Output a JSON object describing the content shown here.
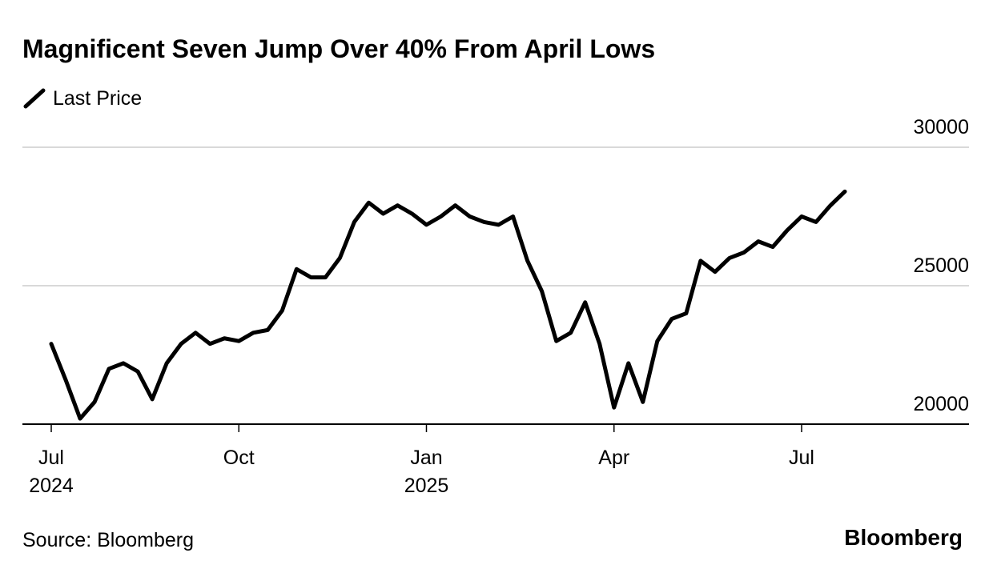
{
  "chart_data": {
    "type": "line",
    "title": "Magnificent Seven Jump Over 40% From April Lows",
    "source": "Source: Bloomberg",
    "brand": "Bloomberg",
    "categories": [
      "Jul\n2024",
      null,
      null,
      null,
      null,
      null,
      null,
      null,
      null,
      null,
      null,
      null,
      null,
      "Oct",
      null,
      null,
      null,
      null,
      null,
      null,
      null,
      null,
      null,
      null,
      null,
      null,
      "Jan\n2025",
      null,
      null,
      null,
      null,
      null,
      null,
      null,
      null,
      null,
      null,
      null,
      null,
      "Apr",
      null,
      null,
      null,
      null,
      null,
      null,
      null,
      null,
      null,
      null,
      null,
      null,
      "Jul",
      null,
      null,
      null
    ],
    "series": [
      {
        "name": "Last Price",
        "color": "#000000",
        "values": [
          22900,
          21600,
          20200,
          20800,
          22000,
          22200,
          21900,
          20900,
          22200,
          22900,
          23300,
          22900,
          23100,
          23000,
          23300,
          23400,
          24100,
          25600,
          25300,
          25300,
          26000,
          27300,
          28000,
          27600,
          27900,
          27600,
          27200,
          27500,
          27900,
          27500,
          27300,
          27200,
          27500,
          25900,
          24800,
          23000,
          23300,
          24400,
          22900,
          20600,
          22200,
          20800,
          23000,
          23800,
          24000,
          25900,
          25500,
          26000,
          26200,
          26600,
          26400,
          27000,
          27500,
          27300,
          27900,
          28400
        ]
      }
    ],
    "ylim": [
      20000,
      30000
    ],
    "yticks": [
      20000,
      25000,
      30000
    ],
    "grid": true
  }
}
